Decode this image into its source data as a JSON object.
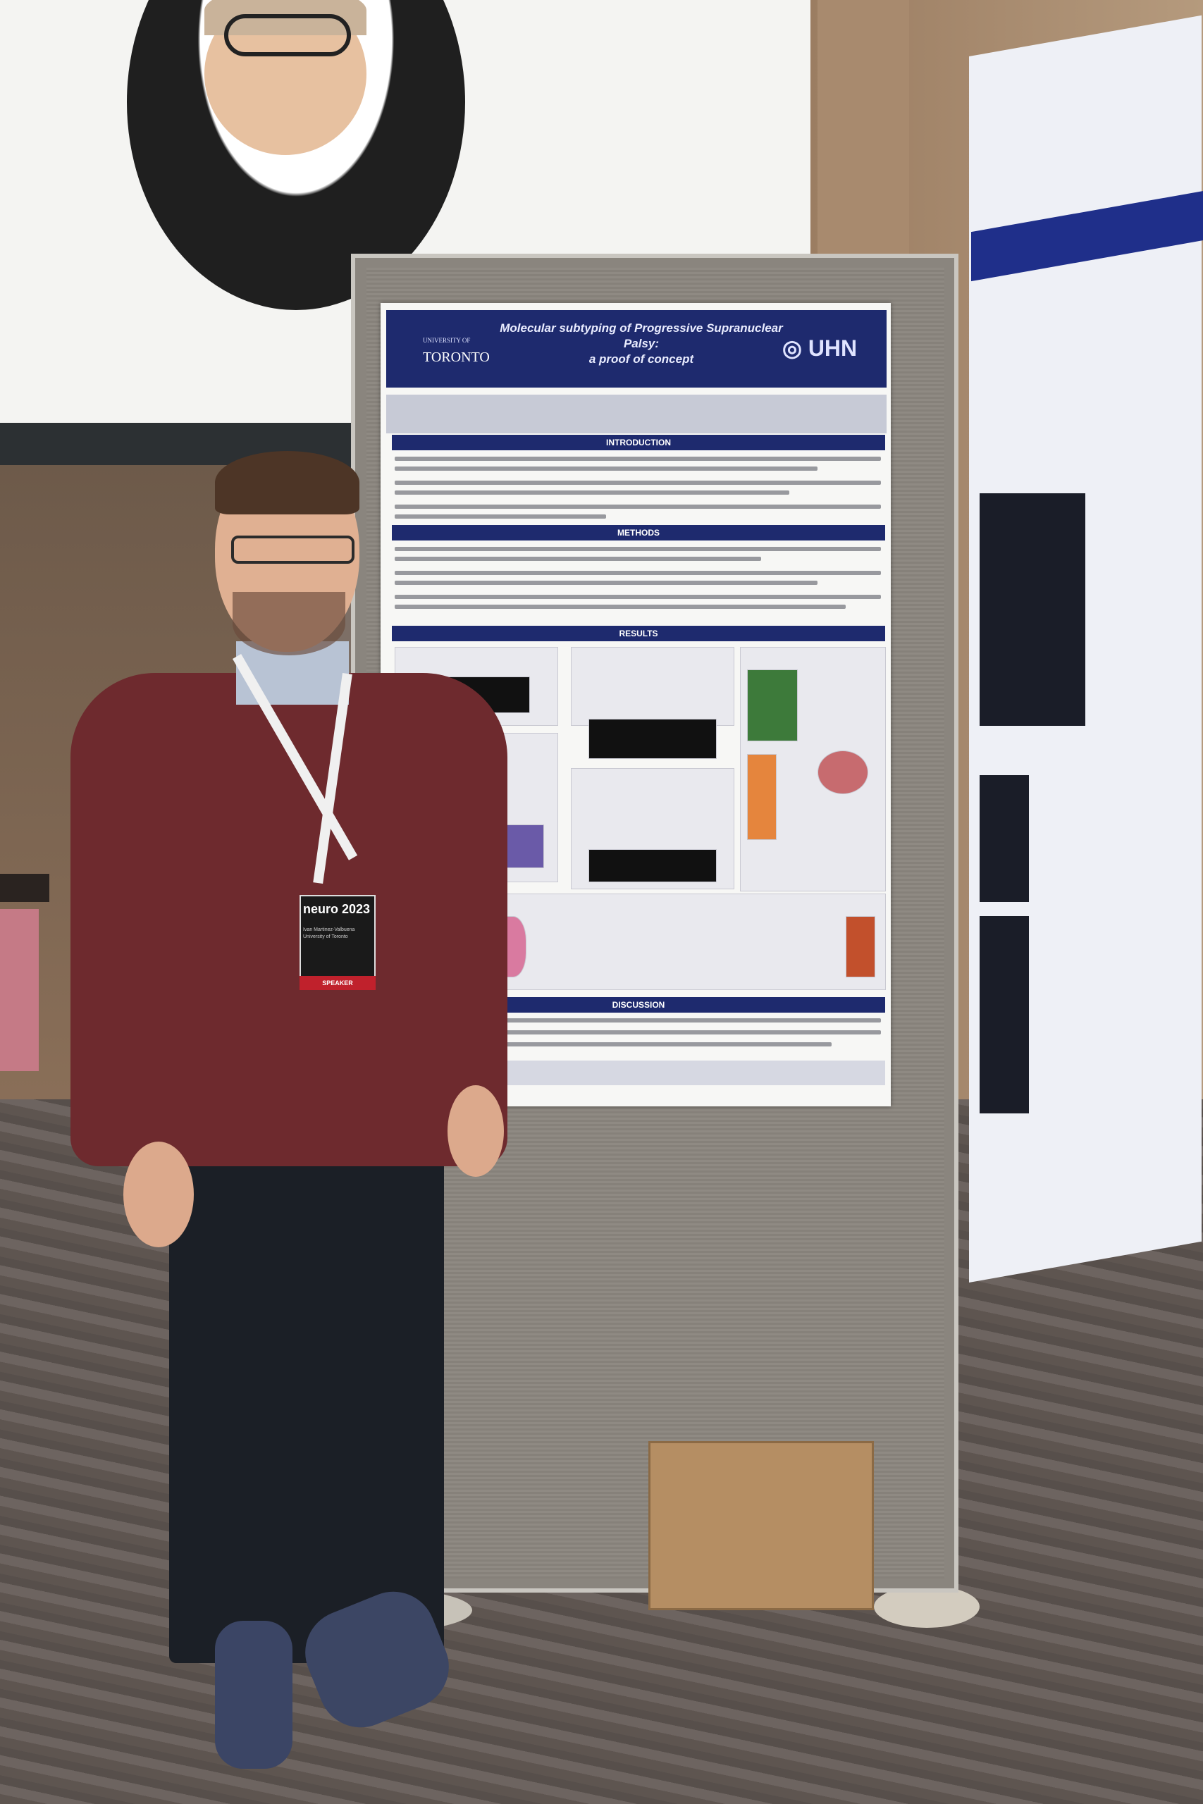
{
  "speaker_screen": {
    "subject": "speaker-portrait"
  },
  "poster": {
    "title_line1": "Molecular subtyping of Progressive Supranuclear Palsy:",
    "title_line2": "a proof of concept",
    "logo_left_top": "UNIVERSITY OF",
    "logo_left": "TORONTO",
    "logo_right": "UHN",
    "sections": {
      "intro": "INTRODUCTION",
      "methods": "METHODS",
      "results": "RESULTS",
      "discussion": "DISCUSSION"
    }
  },
  "badge": {
    "event": "neuro 2023",
    "name": "Ivan Martinez-Valbuena",
    "affiliation": "University of Toronto",
    "role": "SPEAKER"
  },
  "colors": {
    "poster_navy": "#1e2a6e",
    "sweater": "#6e2a2e",
    "board": "#8a857e"
  }
}
